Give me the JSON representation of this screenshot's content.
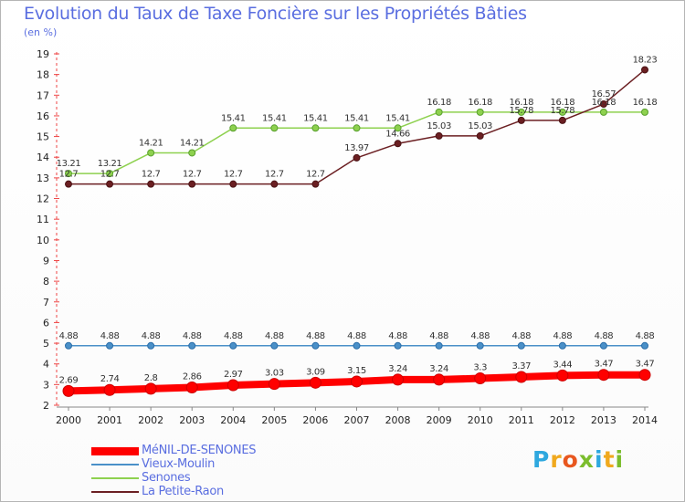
{
  "title": "Evolution du Taux de Taxe Foncière sur les Propriétés Bâties",
  "subtitle": "(en %)",
  "logo": [
    "P",
    "r",
    "o",
    "x",
    "i",
    "t",
    "i"
  ],
  "logo_colors": [
    "#2ea8df",
    "#f0a91e",
    "#e8571f",
    "#7bbd2d",
    "#2ea8df",
    "#f0a91e",
    "#7bbd2d"
  ],
  "chart_data": {
    "type": "line",
    "x": [
      "2000",
      "2001",
      "2002",
      "2003",
      "2004",
      "2005",
      "2006",
      "2007",
      "2008",
      "2009",
      "2010",
      "2011",
      "2012",
      "2013",
      "2014"
    ],
    "ylim": [
      2,
      19
    ],
    "yticks": [
      "2",
      "3",
      "4",
      "5",
      "6",
      "7",
      "8",
      "9",
      "10",
      "11",
      "12",
      "13",
      "14",
      "15",
      "16",
      "17",
      "18",
      "19"
    ],
    "grid": false,
    "legend_position": "bottom-left",
    "series": [
      {
        "name": "MéNIL-DE-SENONES",
        "color": "#ff0000",
        "values": [
          2.69,
          2.74,
          2.8,
          2.86,
          2.97,
          3.03,
          3.09,
          3.15,
          3.24,
          3.24,
          3.3,
          3.37,
          3.44,
          3.47,
          3.47
        ],
        "labels": [
          "2.69",
          "2.74",
          "2.8",
          "2.86",
          "2.97",
          "3.03",
          "3.09",
          "3.15",
          "3.24",
          "3.24",
          "3.3",
          "3.37",
          "3.44",
          "3.47",
          "3.47"
        ]
      },
      {
        "name": "Vieux-Moulin",
        "color": "#4a90c8",
        "values": [
          4.88,
          4.88,
          4.88,
          4.88,
          4.88,
          4.88,
          4.88,
          4.88,
          4.88,
          4.88,
          4.88,
          4.88,
          4.88,
          4.88,
          4.88
        ],
        "labels": [
          "4.88",
          "4.88",
          "4.88",
          "4.88",
          "4.88",
          "4.88",
          "4.88",
          "4.88",
          "4.88",
          "4.88",
          "4.88",
          "4.88",
          "4.88",
          "4.88",
          "4.88"
        ]
      },
      {
        "name": "Senones",
        "color": "#8ed14f",
        "values": [
          13.21,
          13.21,
          14.21,
          14.21,
          15.41,
          15.41,
          15.41,
          15.41,
          15.41,
          16.18,
          16.18,
          16.18,
          16.18,
          16.18,
          16.18
        ],
        "labels": [
          "13.21",
          "13.21",
          "14.21",
          "14.21",
          "15.41",
          "15.41",
          "15.41",
          "15.41",
          "15.41",
          "16.18",
          "16.18",
          "16.18",
          "16.18",
          "16.18",
          "16.18"
        ]
      },
      {
        "name": "La Petite-Raon",
        "color": "#6b1f22",
        "values": [
          12.7,
          12.7,
          12.7,
          12.7,
          12.7,
          12.7,
          12.7,
          13.97,
          14.66,
          15.03,
          15.03,
          15.78,
          15.78,
          16.57,
          18.23
        ],
        "labels": [
          "12.7",
          "12.7",
          "12.7",
          "12.7",
          "12.7",
          "12.7",
          "12.7",
          "13.97",
          "14.66",
          "15.03",
          "15.03",
          "15.78",
          "15.78",
          "16.57",
          "18.23"
        ]
      }
    ]
  }
}
